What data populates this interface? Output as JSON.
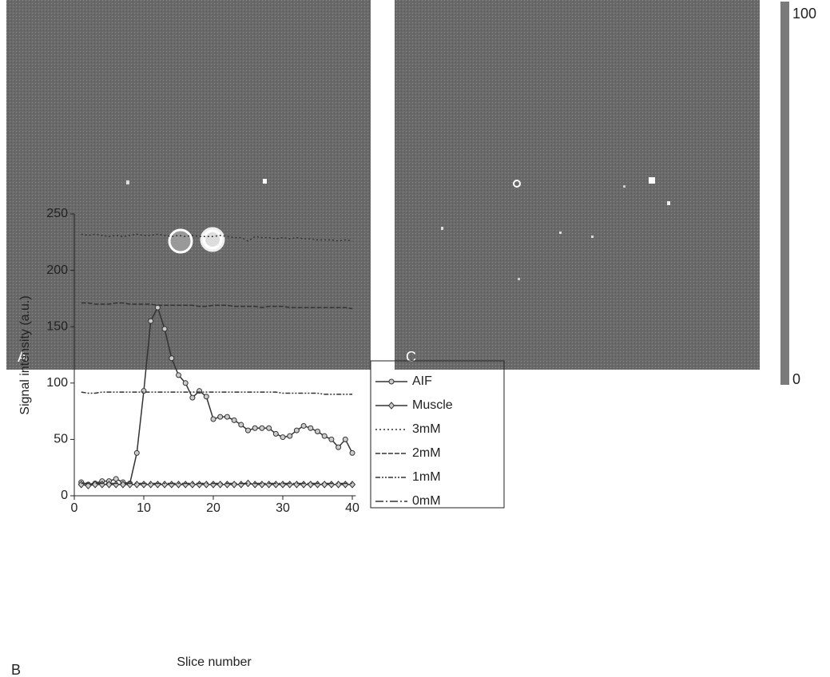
{
  "images": {
    "left_label": "A",
    "right_label": "C"
  },
  "colorbar": {
    "ticks": [
      0,
      100
    ]
  },
  "chart_data": {
    "type": "line",
    "panel_label": "B",
    "xlabel": "Slice number",
    "ylabel": "Signal intensity (a.u.)",
    "xlim": [
      0,
      40.5
    ],
    "xticks": [
      0,
      10,
      20,
      30,
      40
    ],
    "ylim": [
      0,
      250
    ],
    "yticks": [
      0,
      50,
      100,
      150,
      200,
      250
    ],
    "legend": "outside-right",
    "x": [
      1,
      2,
      3,
      4,
      5,
      6,
      7,
      8,
      9,
      10,
      11,
      12,
      13,
      14,
      15,
      16,
      17,
      18,
      19,
      20,
      21,
      22,
      23,
      24,
      25,
      26,
      27,
      28,
      29,
      30,
      31,
      32,
      33,
      34,
      35,
      36,
      37,
      38,
      39,
      40
    ],
    "series": [
      {
        "name": "AIF",
        "color": "#333333",
        "marker": "circle",
        "dash": "none",
        "values": [
          12,
          10,
          11,
          13,
          13,
          15,
          12,
          11,
          38,
          93,
          155,
          167,
          148,
          122,
          107,
          100,
          87,
          93,
          88,
          68,
          70,
          70,
          67,
          63,
          58,
          60,
          60,
          60,
          55,
          52,
          53,
          58,
          62,
          60,
          57,
          53,
          50,
          43,
          50,
          38
        ]
      },
      {
        "name": "Muscle",
        "color": "#333333",
        "marker": "diamond",
        "dash": "none",
        "values": [
          10,
          9,
          10,
          10,
          10,
          10,
          10,
          10,
          10,
          10,
          10,
          10,
          10,
          10,
          10,
          10,
          10,
          10,
          10,
          10,
          10,
          10,
          10,
          10,
          11,
          10,
          10,
          10,
          10,
          10,
          10,
          10,
          10,
          10,
          10,
          10,
          10,
          10,
          10,
          10
        ]
      },
      {
        "name": "3mM",
        "color": "#333333",
        "marker": "none",
        "dash": "2,3",
        "values": [
          232,
          231,
          232,
          231,
          230,
          231,
          230,
          231,
          232,
          231,
          231,
          232,
          231,
          230,
          231,
          230,
          231,
          230,
          230,
          230,
          231,
          230,
          229,
          229,
          226,
          230,
          229,
          229,
          228,
          229,
          228,
          229,
          228,
          228,
          227,
          227,
          227,
          226,
          227,
          226
        ]
      },
      {
        "name": "2mM",
        "color": "#333333",
        "marker": "none",
        "dash": "6,2",
        "values": [
          171,
          171,
          170,
          170,
          170,
          171,
          171,
          170,
          170,
          170,
          170,
          169,
          169,
          169,
          169,
          169,
          169,
          168,
          168,
          169,
          169,
          169,
          168,
          168,
          168,
          168,
          167,
          168,
          168,
          168,
          167,
          167,
          167,
          167,
          167,
          167,
          167,
          167,
          167,
          166
        ]
      },
      {
        "name": "1mM",
        "color": "#333333",
        "marker": "none",
        "dash": "6,2,2,2,2,2",
        "values": [
          92,
          91,
          91,
          92,
          92,
          92,
          92,
          92,
          92,
          92,
          92,
          92,
          92,
          92,
          92,
          92,
          92,
          92,
          92,
          92,
          92,
          92,
          92,
          92,
          92,
          92,
          92,
          92,
          92,
          91,
          91,
          91,
          91,
          91,
          91,
          90,
          90,
          90,
          90,
          90
        ]
      },
      {
        "name": "0mM",
        "color": "#333333",
        "marker": "none",
        "dash": "10,3,2,3",
        "values": [
          11,
          11,
          11,
          11,
          11,
          11,
          11,
          11,
          11,
          11,
          11,
          11,
          11,
          11,
          11,
          11,
          11,
          11,
          11,
          11,
          11,
          11,
          11,
          11,
          11,
          11,
          11,
          11,
          11,
          11,
          11,
          11,
          11,
          11,
          11,
          11,
          11,
          11,
          11,
          11
        ]
      }
    ]
  }
}
